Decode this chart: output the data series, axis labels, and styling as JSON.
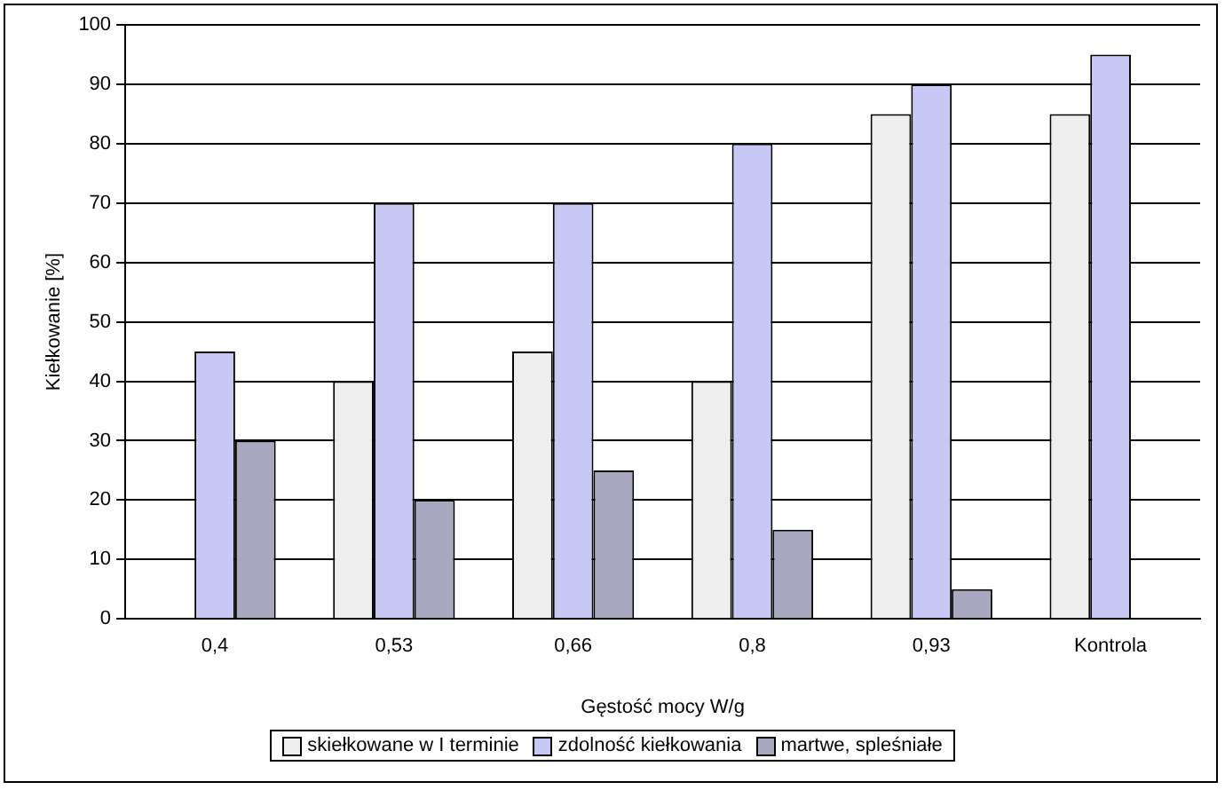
{
  "chart_data": {
    "type": "bar",
    "xlabel": "Gęstość mocy W/g",
    "ylabel": "Kiełkowanie [%]",
    "categories": [
      "0,4",
      "0,53",
      "0,66",
      "0,8",
      "0,93",
      "Kontrola"
    ],
    "series": [
      {
        "name": "skiełkowane w I terminie",
        "color": "#eeeeee",
        "values": [
          0,
          40,
          45,
          40,
          85,
          85
        ]
      },
      {
        "name": "zdolność kiełkowania",
        "color": "#c8c8f4",
        "values": [
          45,
          70,
          70,
          80,
          90,
          95
        ]
      },
      {
        "name": "martwe, spleśniałe",
        "color": "#a8a8c0",
        "values": [
          30,
          20,
          25,
          15,
          5,
          0
        ]
      }
    ],
    "ylim": [
      0,
      100
    ],
    "yticks": [
      0,
      10,
      20,
      30,
      40,
      50,
      60,
      70,
      80,
      90,
      100
    ],
    "grid": "y",
    "legend": "bottom"
  }
}
